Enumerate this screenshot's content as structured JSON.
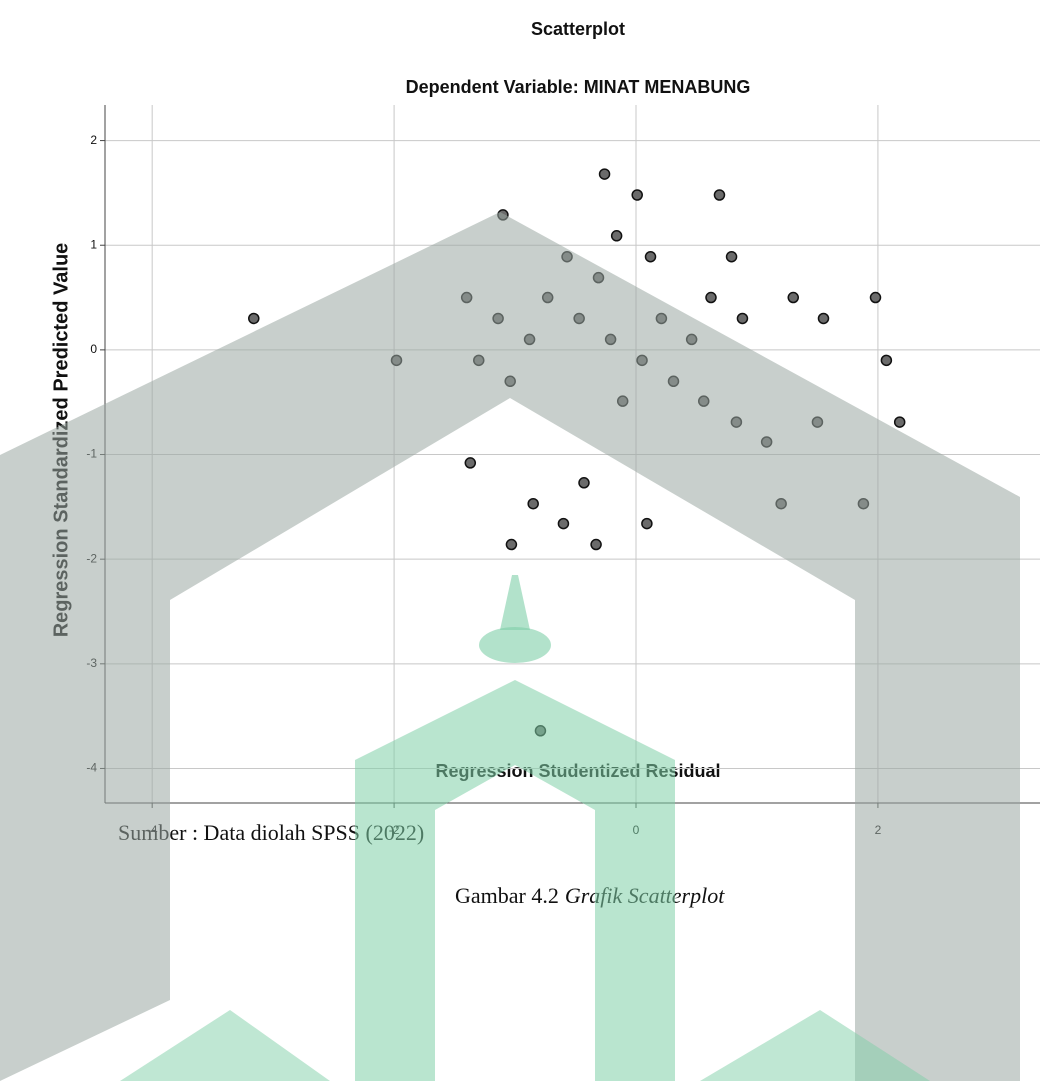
{
  "chart_data": {
    "type": "scatter",
    "title": "Scatterplot",
    "subtitle": "Dependent Variable: MINAT MENABUNG",
    "x_label": "Regression Studentized Residual",
    "y_label": "Regression Standardized Predicted Value",
    "x": [
      -3.16,
      -1.98,
      -1.4,
      -1.3,
      -1.14,
      -1.1,
      -1.04,
      -1.37,
      -1.03,
      -0.88,
      -0.85,
      -0.73,
      -0.6,
      -0.57,
      -0.47,
      -0.43,
      -0.33,
      -0.31,
      -0.26,
      -0.21,
      -0.16,
      -0.11,
      0.01,
      0.05,
      0.09,
      0.12,
      0.21,
      0.31,
      0.46,
      0.56,
      0.62,
      0.69,
      0.79,
      0.83,
      0.88,
      1.08,
      1.2,
      1.3,
      1.5,
      1.55,
      1.88,
      1.98,
      2.07,
      2.18,
      -0.79
    ],
    "values": [
      0.3,
      -0.1,
      0.5,
      -0.1,
      0.3,
      1.29,
      -0.3,
      -1.08,
      -1.86,
      0.1,
      -1.47,
      0.5,
      -1.66,
      0.89,
      0.3,
      -1.27,
      -1.86,
      0.69,
      1.68,
      0.1,
      1.09,
      -0.49,
      1.48,
      -0.1,
      -1.66,
      0.89,
      0.3,
      -0.3,
      0.1,
      -0.49,
      0.5,
      1.48,
      0.89,
      -0.69,
      0.3,
      -0.88,
      -1.47,
      0.5,
      -0.69,
      0.3,
      -1.47,
      0.5,
      -0.1,
      -0.69,
      -3.64
    ],
    "color": "#6b6b6b",
    "xlim": [
      -4.39,
      3.34
    ],
    "ylim": [
      -4.33,
      2.34
    ],
    "xticks": [
      -4,
      -2,
      0,
      2
    ],
    "yticks": [
      2,
      1,
      0,
      -1,
      -2,
      -3,
      -4
    ],
    "grid": true
  },
  "source": "Sumber : Data diolah SPSS (2022)",
  "caption": {
    "number": "Gambar 4.2",
    "title": "Grafik Scatterplot"
  }
}
